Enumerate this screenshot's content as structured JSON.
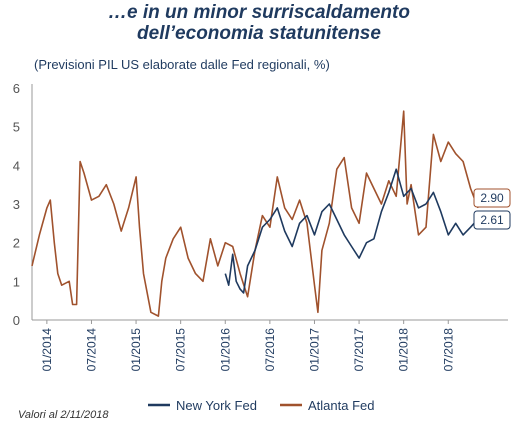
{
  "title_line1": "…e in un minor surriscaldamento",
  "title_line2": "dell’economia statunitense",
  "subtitle": "(Previsioni PIL US elaborate dalle Fed regionali, %)",
  "footnote": "Valori al 2/11/2018",
  "colors": {
    "ny": "#1f3a5f",
    "atlanta": "#a0522d",
    "axis": "#999999"
  },
  "callouts": {
    "atlanta": "2.90",
    "ny": "2.61"
  },
  "chart_data": {
    "type": "line",
    "ylim": [
      0,
      6
    ],
    "y_ticks": [
      "0",
      "1",
      "2",
      "3",
      "4",
      "5",
      "6"
    ],
    "x_tick_labels": [
      "01/2014",
      "07/2014",
      "01/2015",
      "07/2015",
      "01/2016",
      "07/2016",
      "01/2017",
      "07/2017",
      "01/2018",
      "07/2018"
    ],
    "x_range": [
      "2013-11",
      "2018-11"
    ],
    "legend_position": "bottom",
    "series": [
      {
        "name": "New York Fed",
        "points": [
          [
            "2016-01",
            1.2
          ],
          [
            "2016-01-15",
            0.9
          ],
          [
            "2016-02",
            1.7
          ],
          [
            "2016-02-15",
            1.0
          ],
          [
            "2016-03",
            0.8
          ],
          [
            "2016-03-15",
            0.7
          ],
          [
            "2016-04",
            1.4
          ],
          [
            "2016-05",
            1.8
          ],
          [
            "2016-06",
            2.4
          ],
          [
            "2016-07",
            2.6
          ],
          [
            "2016-08",
            2.9
          ],
          [
            "2016-09",
            2.3
          ],
          [
            "2016-10",
            1.9
          ],
          [
            "2016-11",
            2.5
          ],
          [
            "2016-12",
            2.7
          ],
          [
            "2017-01",
            2.2
          ],
          [
            "2017-02",
            2.8
          ],
          [
            "2017-03",
            3.0
          ],
          [
            "2017-04",
            2.6
          ],
          [
            "2017-05",
            2.2
          ],
          [
            "2017-06",
            1.9
          ],
          [
            "2017-07",
            1.6
          ],
          [
            "2017-08",
            2.0
          ],
          [
            "2017-09",
            2.1
          ],
          [
            "2017-10",
            2.8
          ],
          [
            "2017-11",
            3.3
          ],
          [
            "2017-12",
            3.9
          ],
          [
            "2018-01",
            3.2
          ],
          [
            "2018-02",
            3.4
          ],
          [
            "2018-03",
            2.9
          ],
          [
            "2018-04",
            3.0
          ],
          [
            "2018-05",
            3.3
          ],
          [
            "2018-06",
            2.8
          ],
          [
            "2018-07",
            2.2
          ],
          [
            "2018-08",
            2.5
          ],
          [
            "2018-09",
            2.2
          ],
          [
            "2018-10",
            2.4
          ],
          [
            "2018-11",
            2.61
          ]
        ]
      },
      {
        "name": "Atlanta Fed",
        "points": [
          [
            "2013-11",
            1.4
          ],
          [
            "2013-12",
            2.2
          ],
          [
            "2014-01",
            2.9
          ],
          [
            "2014-01-15",
            3.1
          ],
          [
            "2014-02",
            2.0
          ],
          [
            "2014-02-15",
            1.2
          ],
          [
            "2014-03",
            0.9
          ],
          [
            "2014-04",
            1.0
          ],
          [
            "2014-04-15",
            0.4
          ],
          [
            "2014-05",
            0.4
          ],
          [
            "2014-05-15",
            4.1
          ],
          [
            "2014-06",
            3.8
          ],
          [
            "2014-07",
            3.1
          ],
          [
            "2014-08",
            3.2
          ],
          [
            "2014-09",
            3.5
          ],
          [
            "2014-10",
            3.0
          ],
          [
            "2014-11",
            2.3
          ],
          [
            "2014-12",
            2.9
          ],
          [
            "2015-01",
            3.7
          ],
          [
            "2015-01-15",
            2.4
          ],
          [
            "2015-02",
            1.2
          ],
          [
            "2015-03",
            0.2
          ],
          [
            "2015-04",
            0.1
          ],
          [
            "2015-04-15",
            1.0
          ],
          [
            "2015-05",
            1.6
          ],
          [
            "2015-06",
            2.1
          ],
          [
            "2015-07",
            2.4
          ],
          [
            "2015-08",
            1.6
          ],
          [
            "2015-09",
            1.2
          ],
          [
            "2015-10",
            1.0
          ],
          [
            "2015-11",
            2.1
          ],
          [
            "2015-12",
            1.4
          ],
          [
            "2016-01",
            2.0
          ],
          [
            "2016-02",
            1.9
          ],
          [
            "2016-03",
            1.2
          ],
          [
            "2016-04",
            0.6
          ],
          [
            "2016-05",
            1.8
          ],
          [
            "2016-06",
            2.7
          ],
          [
            "2016-07",
            2.4
          ],
          [
            "2016-08",
            3.7
          ],
          [
            "2016-09",
            2.9
          ],
          [
            "2016-10",
            2.6
          ],
          [
            "2016-11",
            3.1
          ],
          [
            "2016-12",
            2.5
          ],
          [
            "2017-01",
            0.9
          ],
          [
            "2017-01-15",
            0.2
          ],
          [
            "2017-02",
            1.8
          ],
          [
            "2017-03",
            2.5
          ],
          [
            "2017-04",
            3.9
          ],
          [
            "2017-05",
            4.2
          ],
          [
            "2017-06",
            2.9
          ],
          [
            "2017-07",
            2.5
          ],
          [
            "2017-08",
            3.8
          ],
          [
            "2017-09",
            3.4
          ],
          [
            "2017-10",
            3.0
          ],
          [
            "2017-11",
            3.6
          ],
          [
            "2017-12",
            3.2
          ],
          [
            "2018-01",
            5.4
          ],
          [
            "2018-01-15",
            3.0
          ],
          [
            "2018-02",
            3.5
          ],
          [
            "2018-03",
            2.2
          ],
          [
            "2018-04",
            2.4
          ],
          [
            "2018-05",
            4.8
          ],
          [
            "2018-06",
            4.1
          ],
          [
            "2018-07",
            4.6
          ],
          [
            "2018-08",
            4.3
          ],
          [
            "2018-09",
            4.1
          ],
          [
            "2018-10",
            3.4
          ],
          [
            "2018-11",
            2.9
          ]
        ]
      }
    ]
  }
}
